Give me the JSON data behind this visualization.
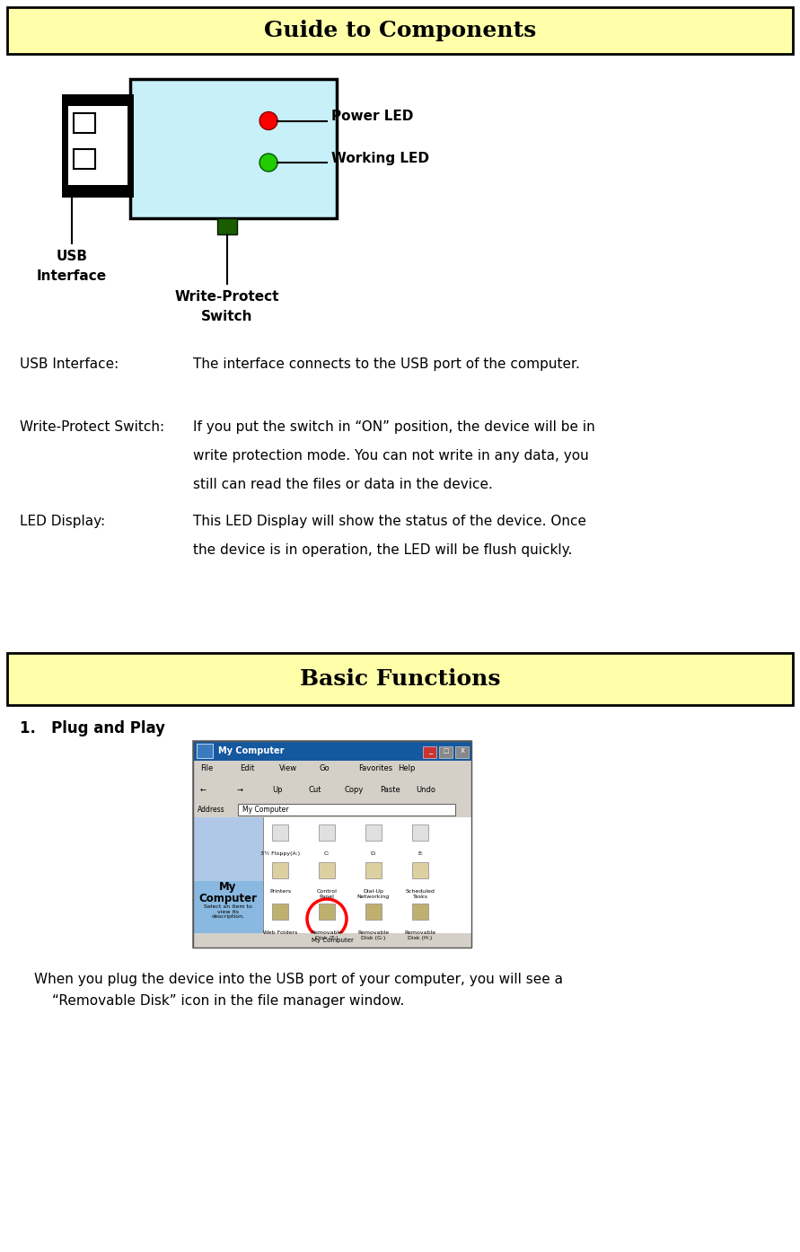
{
  "title1": "Guide to Components",
  "title2": "Basic Functions",
  "bg_color": "#ffffaa",
  "body_bg": "#ffffff",
  "usb_label": "USB Interface:",
  "usb_text": "The interface connects to the USB port of the computer.",
  "wp_label": "Write-Protect Switch:",
  "wp_line1": "If you put the switch in “ON” position, the device will be in",
  "wp_line2": "write protection mode. You can not write in any data, you",
  "wp_line3": "still can read the files or data in the device.",
  "led_label": "LED Display:",
  "led_line1": "This LED Display will show the status of the device. Once",
  "led_line2": "the device is in operation, the LED will be flush quickly.",
  "basic_item": "1.   Plug and Play",
  "plug_text1": "When you plug the device into the USB port of your computer, you will see a",
  "plug_text2": "“Removable Disk” icon in the file manager window.",
  "power_led": "Power LED",
  "working_led": "Working LED",
  "write_protect_line1": "Write-Protect",
  "write_protect_line2": "Switch",
  "usb_interface_line1": "USB",
  "usb_interface_line2": "Interface",
  "diagram_note_wp": "Write-Protect Switch",
  "diagram_note_usb": "USB Interface",
  "diagram_note_power": "Power LED",
  "diagram_note_working": "Working LED"
}
